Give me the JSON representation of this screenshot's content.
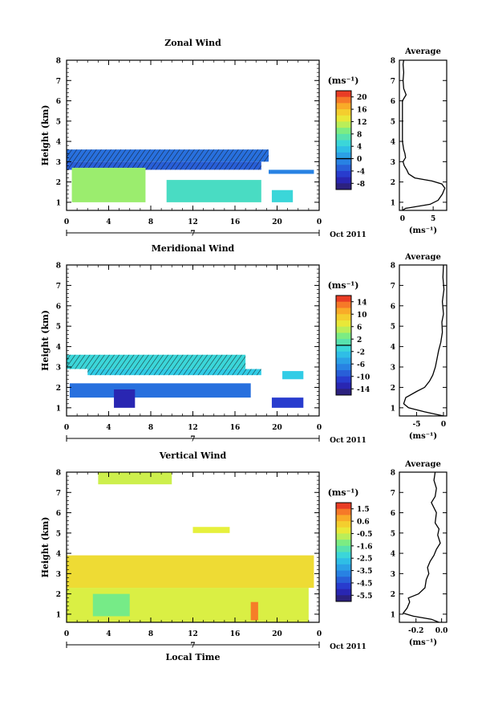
{
  "date_label": "Oct 2011",
  "xlabel": "Local Time",
  "chart_data": [
    {
      "type": "heatmap",
      "title": "Zonal Wind",
      "ylabel": "Height (km)",
      "unit": "(ms⁻¹)",
      "xlim": [
        0,
        24
      ],
      "ylim": [
        0.6,
        8.0
      ],
      "x_ticks": [
        "0",
        "4",
        "8",
        "12",
        "16",
        "20",
        "0"
      ],
      "y_ticks": [
        "1",
        "2",
        "3",
        "4",
        "5",
        "6",
        "7",
        "8"
      ],
      "day_label": "7",
      "colorbar": {
        "ticks": [
          "20",
          "16",
          "12",
          "8",
          "4",
          "0",
          "-4",
          "-8"
        ],
        "range": [
          -10,
          22
        ]
      },
      "regions": [
        {
          "x": [
            0,
            19.2
          ],
          "y": [
            3.0,
            3.6
          ],
          "value": -2,
          "hatched": true
        },
        {
          "x": [
            0,
            18.5
          ],
          "y": [
            2.6,
            3.0
          ],
          "value": -3,
          "hatched": true
        },
        {
          "x": [
            19.2,
            23.5
          ],
          "y": [
            2.4,
            2.6
          ],
          "value": -1,
          "hatched": false
        },
        {
          "x": [
            0.5,
            7.5
          ],
          "y": [
            1.0,
            2.7
          ],
          "value": 10,
          "hatched": false
        },
        {
          "x": [
            9.5,
            18.5
          ],
          "y": [
            1.0,
            2.1
          ],
          "value": 6,
          "hatched": false
        },
        {
          "x": [
            19.5,
            21.5
          ],
          "y": [
            1.0,
            1.6
          ],
          "value": 5,
          "hatched": false
        }
      ],
      "average": {
        "xlim": [
          -0.5,
          7.2
        ],
        "x_ticks": [
          "0",
          "5"
        ],
        "title": "Average",
        "unit": "(ms⁻¹)",
        "profile": [
          {
            "h": 0.6,
            "v": 0.0
          },
          {
            "h": 0.7,
            "v": 0.5
          },
          {
            "h": 0.9,
            "v": 4.5
          },
          {
            "h": 1.1,
            "v": 5.8
          },
          {
            "h": 1.4,
            "v": 6.5
          },
          {
            "h": 1.7,
            "v": 6.9
          },
          {
            "h": 1.9,
            "v": 6.4
          },
          {
            "h": 2.05,
            "v": 4.8
          },
          {
            "h": 2.2,
            "v": 2.0
          },
          {
            "h": 2.4,
            "v": 1.0
          },
          {
            "h": 2.6,
            "v": 0.7
          },
          {
            "h": 2.8,
            "v": 0.3
          },
          {
            "h": 3.0,
            "v": 0.1
          },
          {
            "h": 3.2,
            "v": 0.5
          },
          {
            "h": 3.4,
            "v": 0.4
          },
          {
            "h": 3.6,
            "v": 0.2
          },
          {
            "h": 4.0,
            "v": 0.0
          },
          {
            "h": 5.0,
            "v": 0.0
          },
          {
            "h": 6.0,
            "v": 0.0
          },
          {
            "h": 6.3,
            "v": 0.6
          },
          {
            "h": 6.6,
            "v": 0.2
          },
          {
            "h": 7.0,
            "v": 0.1
          },
          {
            "h": 7.4,
            "v": 0.2
          },
          {
            "h": 7.8,
            "v": 0.1
          },
          {
            "h": 8.0,
            "v": 0.2
          }
        ]
      }
    },
    {
      "type": "heatmap",
      "title": "Meridional Wind",
      "ylabel": "Height (km)",
      "unit": "(ms⁻¹)",
      "xlim": [
        0,
        24
      ],
      "ylim": [
        0.6,
        8.0
      ],
      "x_ticks": [
        "0",
        "4",
        "8",
        "12",
        "16",
        "20",
        "0"
      ],
      "y_ticks": [
        "1",
        "2",
        "3",
        "4",
        "5",
        "6",
        "7",
        "8"
      ],
      "day_label": "7",
      "colorbar": {
        "ticks": [
          "14",
          "10",
          "6",
          "2",
          "-2",
          "-6",
          "-10",
          "-14"
        ],
        "range": [
          -16,
          16
        ]
      },
      "regions": [
        {
          "x": [
            0,
            17.0
          ],
          "y": [
            2.9,
            3.6
          ],
          "value": -1,
          "hatched": true
        },
        {
          "x": [
            2.0,
            18.5
          ],
          "y": [
            2.6,
            2.9
          ],
          "value": -2,
          "hatched": true
        },
        {
          "x": [
            20.5,
            22.5
          ],
          "y": [
            2.4,
            2.8
          ],
          "value": -2,
          "hatched": false
        },
        {
          "x": [
            0.3,
            17.5
          ],
          "y": [
            1.5,
            2.2
          ],
          "value": -8,
          "hatched": false
        },
        {
          "x": [
            4.5,
            6.5
          ],
          "y": [
            1.0,
            1.9
          ],
          "value": -13,
          "hatched": false
        },
        {
          "x": [
            19.5,
            22.5
          ],
          "y": [
            1.0,
            1.5
          ],
          "value": -11,
          "hatched": false
        }
      ],
      "average": {
        "xlim": [
          -8.2,
          0.6
        ],
        "x_ticks": [
          "-5",
          "0"
        ],
        "title": "Average",
        "unit": "(ms⁻¹)",
        "profile": [
          {
            "h": 0.6,
            "v": 0.0
          },
          {
            "h": 0.8,
            "v": -3.5
          },
          {
            "h": 1.0,
            "v": -6.5
          },
          {
            "h": 1.2,
            "v": -7.4
          },
          {
            "h": 1.5,
            "v": -7.0
          },
          {
            "h": 1.8,
            "v": -5.0
          },
          {
            "h": 2.0,
            "v": -3.5
          },
          {
            "h": 2.3,
            "v": -2.6
          },
          {
            "h": 2.6,
            "v": -2.0
          },
          {
            "h": 3.0,
            "v": -1.5
          },
          {
            "h": 3.4,
            "v": -1.2
          },
          {
            "h": 3.8,
            "v": -0.9
          },
          {
            "h": 4.2,
            "v": -0.5
          },
          {
            "h": 4.7,
            "v": -0.2
          },
          {
            "h": 5.2,
            "v": -0.3
          },
          {
            "h": 5.6,
            "v": 0.0
          },
          {
            "h": 6.2,
            "v": -0.2
          },
          {
            "h": 6.8,
            "v": 0.1
          },
          {
            "h": 7.4,
            "v": -0.1
          },
          {
            "h": 8.0,
            "v": 0.0
          }
        ]
      }
    },
    {
      "type": "heatmap",
      "title": "Vertical Wind",
      "ylabel": "Height (km)",
      "unit": "(ms⁻¹)",
      "xlim": [
        0,
        24
      ],
      "ylim": [
        0.6,
        8.0
      ],
      "x_ticks": [
        "0",
        "4",
        "8",
        "12",
        "16",
        "20",
        "0"
      ],
      "y_ticks": [
        "1",
        "2",
        "3",
        "4",
        "5",
        "6",
        "7",
        "8"
      ],
      "day_label": "7",
      "colorbar": {
        "ticks": [
          "1.5",
          "0.6",
          "-0.5",
          "-1.6",
          "-2.5",
          "-3.5",
          "-4.5",
          "-5.5"
        ],
        "range": [
          -6,
          2
        ]
      },
      "regions": [
        {
          "x": [
            0,
            23.5
          ],
          "y": [
            2.3,
            3.9
          ],
          "value": 0.0,
          "hatched": false
        },
        {
          "x": [
            0,
            23.0
          ],
          "y": [
            0.6,
            2.3
          ],
          "value": -0.5,
          "hatched": false
        },
        {
          "x": [
            2.5,
            6.0
          ],
          "y": [
            0.9,
            2.0
          ],
          "value": -1.3,
          "hatched": false
        },
        {
          "x": [
            17.5,
            18.2
          ],
          "y": [
            0.7,
            1.6
          ],
          "value": 1.2,
          "hatched": false
        },
        {
          "x": [
            3.0,
            10.0
          ],
          "y": [
            7.4,
            8.0
          ],
          "value": -0.6,
          "hatched": false
        },
        {
          "x": [
            12.0,
            15.5
          ],
          "y": [
            5.0,
            5.3
          ],
          "value": -0.4,
          "hatched": false
        }
      ],
      "average": {
        "xlim": [
          -0.33,
          0.04
        ],
        "x_ticks": [
          "-0.2",
          "0.0"
        ],
        "title": "Average",
        "unit": "(ms⁻¹)",
        "profile": [
          {
            "h": 0.6,
            "v": -0.02
          },
          {
            "h": 0.75,
            "v": -0.08
          },
          {
            "h": 0.9,
            "v": -0.22
          },
          {
            "h": 1.05,
            "v": -0.3
          },
          {
            "h": 1.3,
            "v": -0.27
          },
          {
            "h": 1.6,
            "v": -0.25
          },
          {
            "h": 1.8,
            "v": -0.26
          },
          {
            "h": 2.0,
            "v": -0.18
          },
          {
            "h": 2.3,
            "v": -0.13
          },
          {
            "h": 2.7,
            "v": -0.12
          },
          {
            "h": 3.0,
            "v": -0.1
          },
          {
            "h": 3.3,
            "v": -0.11
          },
          {
            "h": 3.6,
            "v": -0.09
          },
          {
            "h": 3.9,
            "v": -0.06
          },
          {
            "h": 4.2,
            "v": -0.04
          },
          {
            "h": 4.5,
            "v": -0.01
          },
          {
            "h": 4.9,
            "v": -0.03
          },
          {
            "h": 5.2,
            "v": -0.02
          },
          {
            "h": 5.5,
            "v": -0.05
          },
          {
            "h": 6.0,
            "v": -0.04
          },
          {
            "h": 6.5,
            "v": -0.08
          },
          {
            "h": 6.8,
            "v": -0.05
          },
          {
            "h": 7.2,
            "v": -0.04
          },
          {
            "h": 7.6,
            "v": -0.06
          },
          {
            "h": 8.0,
            "v": -0.05
          }
        ]
      }
    }
  ]
}
